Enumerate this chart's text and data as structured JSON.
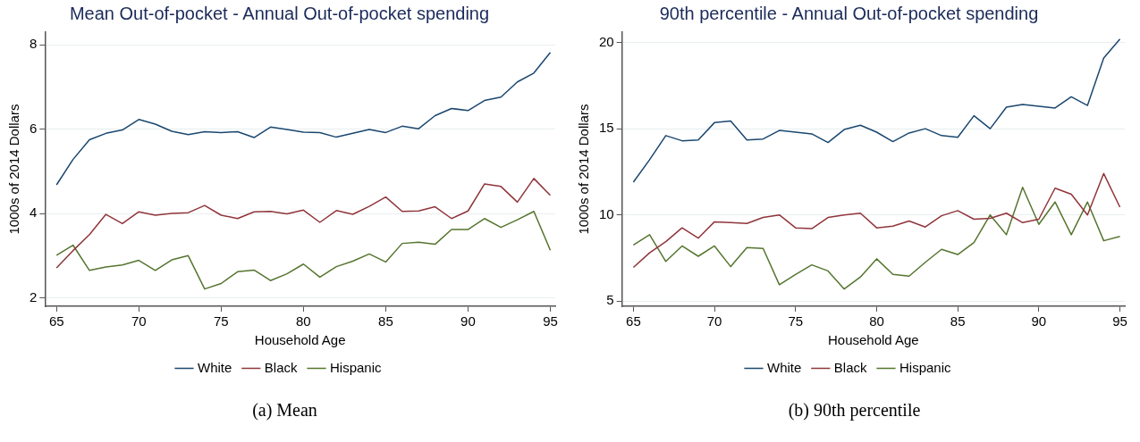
{
  "chart_data": [
    {
      "type": "line",
      "title": "Mean Out-of-pocket - Annual Out-of-pocket spending",
      "xlabel": "Household Age",
      "ylabel": "1000s of 2014 Dollars",
      "x": [
        65,
        66,
        67,
        68,
        69,
        70,
        71,
        72,
        73,
        74,
        75,
        76,
        77,
        78,
        79,
        80,
        81,
        82,
        83,
        84,
        85,
        86,
        87,
        88,
        89,
        90,
        91,
        92,
        93,
        94,
        95
      ],
      "series": [
        {
          "name": "White",
          "color": "#1a476f",
          "values": [
            4.68,
            5.28,
            5.75,
            5.9,
            5.98,
            6.23,
            6.12,
            5.95,
            5.87,
            5.94,
            5.92,
            5.94,
            5.8,
            6.05,
            5.99,
            5.93,
            5.92,
            5.81,
            5.9,
            5.99,
            5.92,
            6.07,
            6.01,
            6.32,
            6.49,
            6.44,
            6.68,
            6.76,
            7.12,
            7.33,
            7.82
          ]
        },
        {
          "name": "Black",
          "color": "#90353b",
          "values": [
            2.71,
            3.12,
            3.5,
            3.98,
            3.76,
            4.04,
            3.96,
            4.0,
            4.02,
            4.19,
            3.96,
            3.88,
            4.04,
            4.05,
            3.99,
            4.08,
            3.79,
            4.07,
            3.98,
            4.17,
            4.39,
            4.05,
            4.06,
            4.16,
            3.88,
            4.06,
            4.7,
            4.64,
            4.27,
            4.83,
            4.43
          ]
        },
        {
          "name": "Hispanic",
          "color": "#55752f",
          "values": [
            3.01,
            3.25,
            2.65,
            2.73,
            2.78,
            2.89,
            2.65,
            2.9,
            3.0,
            2.21,
            2.34,
            2.62,
            2.66,
            2.41,
            2.57,
            2.8,
            2.49,
            2.74,
            2.87,
            3.04,
            2.85,
            3.29,
            3.32,
            3.27,
            3.62,
            3.62,
            3.88,
            3.67,
            3.85,
            4.05,
            3.13
          ]
        }
      ],
      "xlim": [
        64.3,
        95.3
      ],
      "xticks": [
        65,
        70,
        75,
        80,
        85,
        90,
        95
      ],
      "ylim": [
        1.8,
        8.3
      ],
      "yticks": [
        2,
        4,
        6,
        8
      ],
      "grid": "y",
      "legend": "bottom",
      "marker": "none",
      "line_style": "solid",
      "annotations": [
        "(a) Mean"
      ]
    },
    {
      "type": "line",
      "title": "90th percentile - Annual Out-of-pocket spending",
      "xlabel": "Household Age",
      "ylabel": "1000s of 2014 Dollars",
      "x": [
        65,
        66,
        67,
        68,
        69,
        70,
        71,
        72,
        73,
        74,
        75,
        76,
        77,
        78,
        79,
        80,
        81,
        82,
        83,
        84,
        85,
        86,
        87,
        88,
        89,
        90,
        91,
        92,
        93,
        94,
        95
      ],
      "series": [
        {
          "name": "White",
          "color": "#1a476f",
          "values": [
            11.9,
            13.2,
            14.6,
            14.3,
            14.35,
            15.35,
            15.45,
            14.35,
            14.4,
            14.9,
            14.8,
            14.7,
            14.2,
            14.95,
            15.2,
            14.8,
            14.25,
            14.75,
            15.0,
            14.6,
            14.5,
            15.75,
            15.0,
            16.25,
            16.4,
            16.3,
            16.2,
            16.85,
            16.35,
            19.1,
            20.2
          ]
        },
        {
          "name": "Black",
          "color": "#90353b",
          "values": [
            6.95,
            7.8,
            8.45,
            9.25,
            8.65,
            9.6,
            9.55,
            9.5,
            9.85,
            10.0,
            9.25,
            9.2,
            9.85,
            10.0,
            10.1,
            9.25,
            9.35,
            9.65,
            9.3,
            9.95,
            10.25,
            9.75,
            9.8,
            10.1,
            9.55,
            9.75,
            11.55,
            11.2,
            10.0,
            12.4,
            10.45
          ]
        },
        {
          "name": "Hispanic",
          "color": "#55752f",
          "values": [
            8.25,
            8.85,
            7.3,
            8.2,
            7.6,
            8.2,
            7.0,
            8.1,
            8.05,
            5.95,
            6.55,
            7.1,
            6.75,
            5.7,
            6.4,
            7.45,
            6.55,
            6.45,
            7.25,
            8.0,
            7.7,
            8.4,
            10.0,
            8.85,
            11.6,
            9.45,
            10.75,
            8.85,
            10.75,
            8.5,
            8.75
          ]
        }
      ],
      "xlim": [
        64.3,
        95.3
      ],
      "xticks": [
        65,
        70,
        75,
        80,
        85,
        90,
        95
      ],
      "ylim": [
        4.7,
        20.6
      ],
      "yticks": [
        5,
        10,
        15,
        20
      ],
      "grid": "y",
      "legend": "bottom",
      "marker": "none",
      "line_style": "solid",
      "annotations": [
        "(b) 90th percentile"
      ]
    }
  ]
}
